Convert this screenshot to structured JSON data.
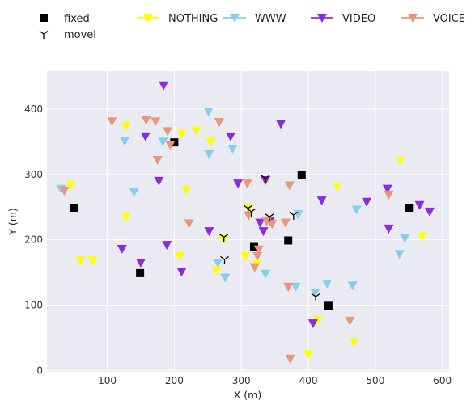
{
  "chart_data": {
    "type": "scatter",
    "title": "",
    "xlabel": "X (m)",
    "ylabel": "Y (m)",
    "xlim": [
      10,
      610
    ],
    "ylim": [
      -2,
      458
    ],
    "xticks": [
      100,
      200,
      300,
      400,
      500,
      600
    ],
    "yticks": [
      0,
      100,
      200,
      300,
      400
    ],
    "grid": true,
    "legend_placement": "top, above plot",
    "background": "#eaeaf2",
    "series": [
      {
        "name": "fixed",
        "marker": "square",
        "color": "#000000",
        "points": [
          [
            51,
            249
          ],
          [
            200,
            349
          ],
          [
            390,
            299
          ],
          [
            319,
            189
          ],
          [
            370,
            199
          ],
          [
            149,
            149
          ],
          [
            430,
            99
          ],
          [
            550,
            249
          ]
        ]
      },
      {
        "name": "NOTHING",
        "marker": "triangle-down",
        "color": "#ffff00",
        "points": [
          [
            45,
            283
          ],
          [
            60,
            168
          ],
          [
            78,
            168
          ],
          [
            128,
            235
          ],
          [
            128,
            374
          ],
          [
            208,
            175
          ],
          [
            211,
            362
          ],
          [
            218,
            276
          ],
          [
            233,
            367
          ],
          [
            254,
            350
          ],
          [
            263,
            153
          ],
          [
            273,
            201
          ],
          [
            306,
            175
          ],
          [
            312,
            249
          ],
          [
            322,
            162
          ],
          [
            336,
            289
          ],
          [
            400,
            25
          ],
          [
            414,
            77
          ],
          [
            443,
            281
          ],
          [
            468,
            43
          ],
          [
            537,
            321
          ],
          [
            570,
            205
          ]
        ]
      },
      {
        "name": "WWW",
        "marker": "triangle-down",
        "color": "#87ceeb",
        "points": [
          [
            31,
            278
          ],
          [
            126,
            351
          ],
          [
            140,
            273
          ],
          [
            183,
            350
          ],
          [
            251,
            396
          ],
          [
            252,
            331
          ],
          [
            265,
            165
          ],
          [
            276,
            142
          ],
          [
            287,
            339
          ],
          [
            336,
            148
          ],
          [
            381,
            128
          ],
          [
            385,
            239
          ],
          [
            410,
            119
          ],
          [
            428,
            133
          ],
          [
            466,
            130
          ],
          [
            472,
            246
          ],
          [
            536,
            178
          ],
          [
            544,
            202
          ]
        ]
      },
      {
        "name": "VIDEO",
        "marker": "triangle-down",
        "color": "#8a2be2",
        "points": [
          [
            122,
            186
          ],
          [
            150,
            165
          ],
          [
            157,
            358
          ],
          [
            177,
            290
          ],
          [
            184,
            436
          ],
          [
            189,
            192
          ],
          [
            211,
            151
          ],
          [
            252,
            213
          ],
          [
            284,
            358
          ],
          [
            295,
            286
          ],
          [
            328,
            226
          ],
          [
            333,
            213
          ],
          [
            336,
            291
          ],
          [
            343,
            229
          ],
          [
            359,
            377
          ],
          [
            407,
            72
          ],
          [
            420,
            260
          ],
          [
            487,
            258
          ],
          [
            518,
            278
          ],
          [
            520,
            217
          ],
          [
            566,
            253
          ],
          [
            581,
            243
          ]
        ]
      },
      {
        "name": "VOICE",
        "marker": "triangle-down",
        "color": "#e9967a",
        "points": [
          [
            36,
            275
          ],
          [
            107,
            381
          ],
          [
            158,
            383
          ],
          [
            172,
            381
          ],
          [
            175,
            322
          ],
          [
            190,
            366
          ],
          [
            194,
            345
          ],
          [
            222,
            225
          ],
          [
            267,
            380
          ],
          [
            309,
            286
          ],
          [
            311,
            237
          ],
          [
            320,
            158
          ],
          [
            324,
            175
          ],
          [
            326,
            185
          ],
          [
            338,
            228
          ],
          [
            346,
            224
          ],
          [
            366,
            226
          ],
          [
            370,
            128
          ],
          [
            372,
            283
          ],
          [
            373,
            18
          ],
          [
            462,
            76
          ],
          [
            520,
            269
          ]
        ]
      },
      {
        "name": "movel",
        "marker": "tri-down",
        "color": "#000000",
        "points": [
          [
            274,
            204
          ],
          [
            275,
            170
          ],
          [
            310,
            248
          ],
          [
            315,
            243
          ],
          [
            336,
            294
          ],
          [
            342,
            235
          ],
          [
            378,
            238
          ],
          [
            411,
            113
          ]
        ]
      }
    ]
  }
}
